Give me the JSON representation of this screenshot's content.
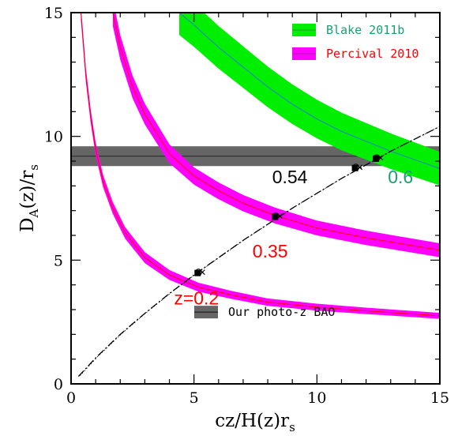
{
  "chart_data": {
    "type": "line",
    "xlabel": "cz/H(z)r",
    "xlabel_sub": "s",
    "ylabel": "D",
    "ylabel_sub": "A",
    "ylabel_rest": "(z)/r",
    "ylabel_sub2": "s",
    "xlim": [
      0,
      15
    ],
    "ylim": [
      0,
      15
    ],
    "x_ticks": [
      0,
      5,
      10,
      15
    ],
    "y_ticks": [
      0,
      5,
      10,
      15
    ],
    "legend_position": "top-right",
    "series": [
      {
        "name": "Percival 2010",
        "band_label": "z=0.2",
        "color": "#ff00ff",
        "line_color": "#ff0000",
        "x": [
          0.4,
          0.6,
          0.8,
          1.0,
          1.3,
          1.7,
          2.2,
          3.0,
          4.0,
          5.2,
          6.5,
          8.0,
          10.0,
          12.0,
          15.0
        ],
        "y_center": [
          15.0,
          12.5,
          10.8,
          9.5,
          8.2,
          7.1,
          6.1,
          5.1,
          4.4,
          3.9,
          3.6,
          3.3,
          3.1,
          2.95,
          2.75
        ],
        "half_width": [
          0.3,
          0.28,
          0.27,
          0.26,
          0.25,
          0.24,
          0.23,
          0.22,
          0.2,
          0.18,
          0.16,
          0.15,
          0.14,
          0.13,
          0.12
        ]
      },
      {
        "name": "Percival 2010",
        "band_label": "0.35",
        "color": "#ff00ff",
        "line_color": "#ff0000",
        "x": [
          1.7,
          2.0,
          2.5,
          3.0,
          4.0,
          5.0,
          6.0,
          7.0,
          8.3,
          10.0,
          12.0,
          15.0
        ],
        "y_center": [
          15.0,
          13.6,
          12.0,
          10.9,
          9.3,
          8.4,
          7.8,
          7.3,
          6.8,
          6.3,
          5.9,
          5.4
        ],
        "half_width": [
          0.55,
          0.5,
          0.46,
          0.42,
          0.38,
          0.35,
          0.34,
          0.33,
          0.32,
          0.3,
          0.29,
          0.28
        ]
      },
      {
        "name": "Blake 2011b",
        "band_label": "0.6",
        "color": "#00ee00",
        "line_color": "#2a7fd0",
        "x": [
          4.4,
          5.0,
          6.0,
          7.0,
          8.0,
          9.0,
          10.0,
          11.0,
          12.0,
          13.0,
          14.0,
          15.0
        ],
        "y_center": [
          15.0,
          14.5,
          13.6,
          12.8,
          12.0,
          11.3,
          10.7,
          10.2,
          9.8,
          9.4,
          9.05,
          8.7
        ],
        "half_width": [
          0.9,
          0.88,
          0.86,
          0.84,
          0.82,
          0.8,
          0.78,
          0.76,
          0.74,
          0.72,
          0.7,
          0.68
        ]
      }
    ],
    "fiducial_curve": {
      "x": [
        0.3,
        1.0,
        2.0,
        3.0,
        4.0,
        5.0,
        6.0,
        7.0,
        8.0,
        9.0,
        10.0,
        11.0,
        12.0,
        13.0,
        14.0,
        15.0
      ],
      "y": [
        0.3,
        1.05,
        2.0,
        2.85,
        3.65,
        4.4,
        5.1,
        5.8,
        6.45,
        7.1,
        7.7,
        8.3,
        8.85,
        9.4,
        9.9,
        10.4
      ]
    },
    "photo_z_bao": {
      "name": "Our photo-z BAO",
      "y": 9.2,
      "half_width": 0.4,
      "color": "#666666"
    },
    "markers": [
      {
        "x": 5.15,
        "y": 4.48
      },
      {
        "x": 8.3,
        "y": 6.75
      },
      {
        "x": 11.55,
        "y": 8.72
      },
      {
        "x": 12.4,
        "y": 9.1
      }
    ],
    "annotations": [
      {
        "text": "z=0.2",
        "x": 5.1,
        "y": 3.2,
        "color": "#ff0000"
      },
      {
        "text": "0.35",
        "x": 8.1,
        "y": 5.1,
        "color": "#ff0000"
      },
      {
        "text": "0.54",
        "x": 8.9,
        "y": 8.1,
        "color": "#000000"
      },
      {
        "text": "0.6",
        "x": 13.4,
        "y": 8.1,
        "color": "#1aa070"
      }
    ],
    "legend": [
      {
        "text": "Blake 2011b",
        "swatch": "#00ee00",
        "text_color": "#1aa070"
      },
      {
        "text": "Percival 2010",
        "swatch": "#ff00ff",
        "text_color": "#ff0000"
      }
    ]
  }
}
